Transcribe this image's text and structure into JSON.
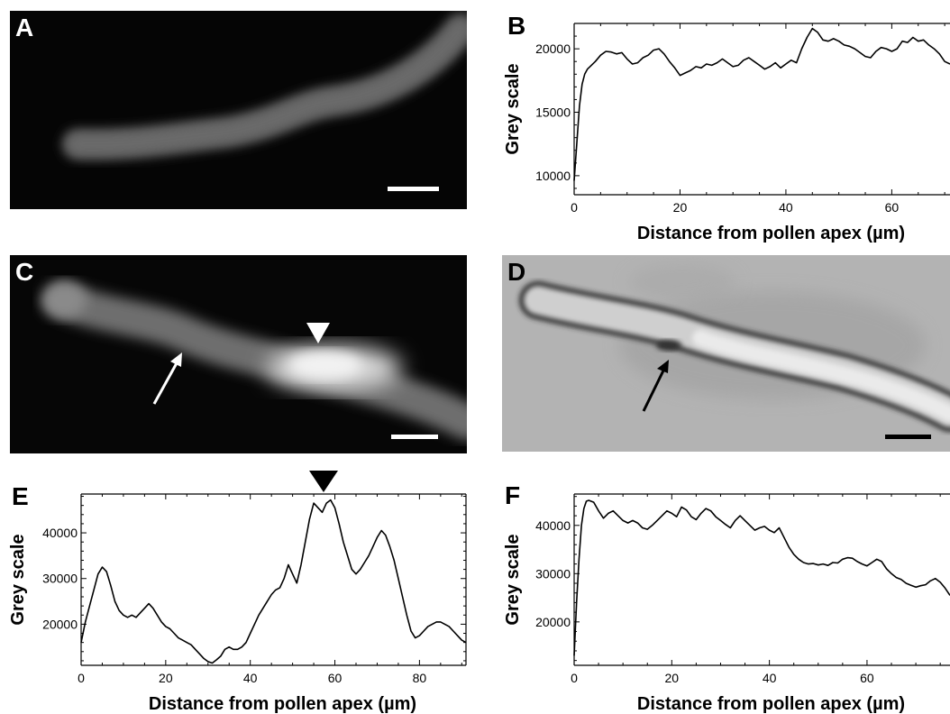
{
  "panels": {
    "A": {
      "letter": "A"
    },
    "B": {
      "letter": "B"
    },
    "C": {
      "letter": "C"
    },
    "D": {
      "letter": "D"
    },
    "E": {
      "letter": "E"
    },
    "F": {
      "letter": "F"
    }
  },
  "chart_data": [
    {
      "id": "B",
      "type": "line",
      "xlabel": "Distance from pollen apex (µm)",
      "ylabel": "Grey scale",
      "xlim": [
        0,
        71
      ],
      "ylim": [
        8500,
        22000
      ],
      "xticks": [
        0,
        20,
        40,
        60
      ],
      "yticks": [
        10000,
        15000,
        20000
      ],
      "x": [
        0,
        0.5,
        1,
        1.5,
        2,
        2.5,
        3,
        4,
        5,
        6,
        7,
        8,
        9,
        10,
        11,
        12,
        13,
        14,
        15,
        16,
        17,
        18,
        19,
        20,
        21,
        22,
        23,
        24,
        25,
        26,
        27,
        28,
        29,
        30,
        31,
        32,
        33,
        34,
        35,
        36,
        37,
        38,
        39,
        40,
        41,
        42,
        43,
        44,
        45,
        46,
        47,
        48,
        49,
        50,
        51,
        52,
        53,
        54,
        55,
        56,
        57,
        58,
        59,
        60,
        61,
        62,
        63,
        64,
        65,
        66,
        67,
        68,
        69,
        70,
        71
      ],
      "values": [
        9600,
        12500,
        15500,
        17200,
        18000,
        18400,
        18600,
        19000,
        19500,
        19800,
        19750,
        19600,
        19700,
        19200,
        18800,
        18900,
        19300,
        19500,
        19900,
        20000,
        19600,
        19000,
        18500,
        17900,
        18100,
        18300,
        18600,
        18500,
        18800,
        18700,
        18900,
        19200,
        18900,
        18600,
        18700,
        19100,
        19300,
        19000,
        18700,
        18400,
        18600,
        18900,
        18500,
        18800,
        19100,
        18900,
        20000,
        20900,
        21600,
        21300,
        20700,
        20600,
        20800,
        20600,
        20300,
        20200,
        20000,
        19700,
        19400,
        19300,
        19800,
        20100,
        20000,
        19800,
        20000,
        20600,
        20500,
        20900,
        20600,
        20700,
        20300,
        20000,
        19600,
        19000,
        18800
      ]
    },
    {
      "id": "E",
      "type": "line",
      "xlabel": "Distance from pollen apex (µm)",
      "ylabel": "Grey scale",
      "xlim": [
        0,
        91
      ],
      "ylim": [
        11000,
        48500
      ],
      "xticks": [
        0,
        20,
        40,
        60,
        80
      ],
      "yticks": [
        20000,
        30000,
        40000
      ],
      "x": [
        0,
        1,
        2,
        3,
        4,
        5,
        6,
        7,
        8,
        9,
        10,
        11,
        12,
        13,
        14,
        15,
        16,
        17,
        18,
        19,
        20,
        21,
        22,
        23,
        24,
        25,
        26,
        27,
        28,
        29,
        30,
        31,
        32,
        33,
        34,
        35,
        36,
        37,
        38,
        39,
        40,
        41,
        42,
        43,
        44,
        45,
        46,
        47,
        48,
        49,
        50,
        51,
        52,
        53,
        54,
        55,
        56,
        57,
        58,
        59,
        60,
        61,
        62,
        63,
        64,
        65,
        66,
        67,
        68,
        69,
        70,
        71,
        72,
        73,
        74,
        75,
        76,
        77,
        78,
        79,
        80,
        81,
        82,
        83,
        84,
        85,
        86,
        87,
        88,
        89,
        90,
        91
      ],
      "values": [
        16000,
        20500,
        24000,
        27500,
        31000,
        32500,
        31500,
        28500,
        25000,
        23000,
        22000,
        21500,
        22000,
        21500,
        22500,
        23500,
        24500,
        23500,
        22000,
        20500,
        19500,
        19000,
        18000,
        17000,
        16500,
        16000,
        15500,
        14500,
        13500,
        12500,
        11800,
        11500,
        12200,
        13000,
        14500,
        15000,
        14500,
        14500,
        15000,
        16000,
        18000,
        20000,
        22000,
        23500,
        25000,
        26500,
        27500,
        28000,
        30000,
        33000,
        31000,
        29000,
        33000,
        38000,
        43000,
        46500,
        45500,
        44500,
        46500,
        47200,
        45500,
        42000,
        38000,
        35000,
        32000,
        31000,
        32000,
        33500,
        35000,
        37000,
        39000,
        40500,
        39500,
        37000,
        34000,
        30000,
        26000,
        22000,
        18500,
        17000,
        17500,
        18500,
        19500,
        20000,
        20500,
        20500,
        20000,
        19500,
        18500,
        17500,
        16500,
        16000
      ]
    },
    {
      "id": "F",
      "type": "line",
      "xlabel": "Distance from pollen apex (µm)",
      "ylabel": "Grey scale",
      "xlim": [
        0,
        77
      ],
      "ylim": [
        11000,
        46500
      ],
      "xticks": [
        0,
        20,
        40,
        60
      ],
      "yticks": [
        20000,
        30000,
        40000
      ],
      "x": [
        0,
        0.5,
        1,
        1.5,
        2,
        2.5,
        3,
        4,
        5,
        6,
        7,
        8,
        9,
        10,
        11,
        12,
        13,
        14,
        15,
        16,
        17,
        18,
        19,
        20,
        21,
        22,
        23,
        24,
        25,
        26,
        27,
        28,
        29,
        30,
        31,
        32,
        33,
        34,
        35,
        36,
        37,
        38,
        39,
        40,
        41,
        42,
        43,
        44,
        45,
        46,
        47,
        48,
        49,
        50,
        51,
        52,
        53,
        54,
        55,
        56,
        57,
        58,
        59,
        60,
        61,
        62,
        63,
        64,
        65,
        66,
        67,
        68,
        69,
        70,
        71,
        72,
        73,
        74,
        75,
        76,
        77
      ],
      "values": [
        13000,
        24000,
        33000,
        40000,
        43500,
        45000,
        45200,
        44800,
        43000,
        41500,
        42500,
        43000,
        42000,
        41000,
        40500,
        41000,
        40500,
        39500,
        39200,
        40000,
        41000,
        42000,
        43000,
        42500,
        41800,
        43800,
        43200,
        41800,
        41200,
        42500,
        43500,
        43000,
        41800,
        41000,
        40200,
        39500,
        41000,
        42000,
        41000,
        40000,
        39000,
        39500,
        39800,
        39000,
        38500,
        39500,
        37500,
        35500,
        34000,
        33000,
        32300,
        32000,
        32100,
        31800,
        32000,
        31700,
        32300,
        32200,
        33000,
        33300,
        33200,
        32500,
        32000,
        31600,
        32300,
        33000,
        32500,
        31000,
        30000,
        29200,
        28800,
        28000,
        27600,
        27200,
        27500,
        27700,
        28500,
        29000,
        28200,
        27000,
        25500
      ]
    }
  ]
}
